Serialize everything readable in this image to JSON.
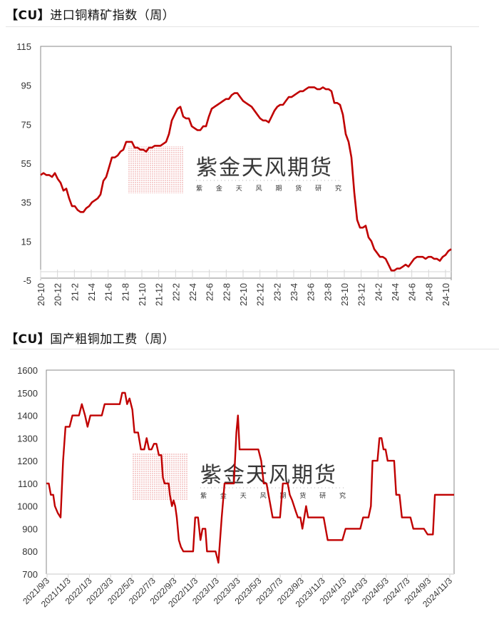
{
  "charts": [
    {
      "title_bracket": "【CU】",
      "title_text": "进口铜精矿指数（周）",
      "watermark": {
        "name": "紫金天风期货",
        "sub": "紫 金 天 风 期 货 研 究"
      }
    },
    {
      "title_bracket": "【CU】",
      "title_text": "国产粗铜加工费（周）",
      "watermark": {
        "name": "紫金天风期货",
        "sub": "紫 金 天 风 期 货 研 究"
      }
    }
  ],
  "colors": {
    "line": "#c00000",
    "axis": "#888888",
    "tick": "#d9d9d9",
    "watermark_red": "#e06060",
    "watermark_gray": "#9a9a9a"
  },
  "chart_data": [
    {
      "type": "line",
      "title": "【CU】进口铜精矿指数（周）",
      "xlabel": "",
      "ylabel": "",
      "ylim": [
        -5,
        115
      ],
      "yticks": [
        -5,
        15,
        35,
        55,
        75,
        95,
        115
      ],
      "xticks": [
        "20-10",
        "20-12",
        "21-2",
        "21-4",
        "21-6",
        "21-8",
        "21-10",
        "21-12",
        "22-2",
        "22-4",
        "22-6",
        "22-8",
        "22-10",
        "22-12",
        "23-2",
        "23-4",
        "23-6",
        "23-8",
        "23-10",
        "23-12",
        "24-2",
        "24-4",
        "24-6",
        "24-8",
        "24-10"
      ],
      "grid": false,
      "legend": null,
      "series": [
        {
          "name": "进口铜精矿指数",
          "x_frac": [
            0,
            0.01,
            0.02,
            0.03,
            0.04,
            0.05,
            0.06,
            0.07,
            0.075,
            0.08,
            0.085,
            0.09,
            0.095,
            0.1,
            0.105,
            0.11,
            0.115,
            0.12,
            0.125,
            0.13,
            0.135,
            0.14,
            0.145,
            0.15,
            0.155,
            0.16,
            0.165,
            0.17,
            0.175,
            0.18,
            0.185,
            0.19,
            0.195,
            0.2,
            0.205,
            0.21,
            0.215,
            0.22,
            0.225,
            0.23,
            0.235,
            0.24,
            0.245,
            0.25,
            0.255,
            0.26,
            0.265,
            0.27,
            0.275,
            0.28,
            0.285,
            0.29,
            0.295,
            0.3,
            0.305,
            0.31,
            0.315,
            0.32,
            0.325,
            0.33,
            0.335,
            0.34,
            0.345,
            0.35,
            0.355,
            0.36,
            0.365,
            0.37,
            0.375,
            0.38,
            0.385,
            0.39,
            0.395,
            0.4,
            0.405,
            0.41,
            0.415,
            0.42,
            0.425,
            0.43,
            0.435,
            0.44,
            0.445,
            0.45,
            0.455,
            0.46,
            0.465,
            0.47,
            0.475,
            0.48,
            0.485,
            0.49,
            0.495,
            0.5,
            0.505,
            0.51,
            0.515,
            0.52,
            0.525,
            0.53,
            0.535,
            0.54,
            0.545,
            0.55,
            0.555,
            0.56,
            0.565,
            0.57,
            0.575,
            0.58,
            0.585,
            0.59,
            0.595,
            0.6,
            0.605,
            0.61,
            0.615,
            0.62,
            0.625,
            0.63,
            0.635,
            0.64,
            0.645,
            0.65,
            0.655,
            0.66,
            0.665,
            0.67,
            0.675,
            0.68,
            0.685,
            0.69,
            0.695,
            0.7,
            0.705,
            0.71,
            0.715,
            0.72,
            0.725,
            0.73,
            0.735,
            0.74,
            0.745,
            0.75,
            0.755,
            0.76,
            0.765,
            0.77,
            0.775,
            0.78,
            0.785,
            0.79,
            0.795,
            0.8,
            0.805,
            0.81,
            0.815,
            0.82,
            0.825,
            0.83,
            0.835,
            0.84,
            0.845,
            0.85,
            0.855,
            0.86,
            0.865,
            0.87,
            0.875,
            0.88,
            0.885,
            0.89,
            0.895,
            0.9,
            0.905,
            0.91,
            0.915,
            0.92,
            0.925,
            0.93,
            0.935,
            0.94,
            0.945,
            0.95,
            0.955,
            0.96,
            0.965,
            0.97,
            0.975,
            0.98,
            0.985,
            0.99,
            0.995,
            1.0
          ],
          "values": [
            49,
            50,
            49,
            49,
            48,
            50,
            47,
            45,
            41,
            42,
            37,
            33,
            33,
            31,
            30,
            30,
            32,
            33,
            35,
            36,
            37,
            39,
            46,
            48,
            53,
            58,
            58,
            59,
            61,
            62,
            66,
            66,
            66,
            63,
            63,
            62,
            62,
            61,
            63,
            63,
            64,
            64,
            64,
            65,
            66,
            70,
            77,
            80,
            83,
            84,
            79,
            78,
            78,
            74,
            73,
            72,
            72,
            74,
            74,
            79,
            83,
            84,
            85,
            86,
            87,
            88,
            88,
            90,
            91,
            91,
            89,
            87,
            86,
            85,
            84,
            82,
            80,
            78,
            77,
            77,
            76,
            79,
            82,
            84,
            85,
            85,
            87,
            89,
            89,
            90,
            91,
            92,
            92,
            93,
            94,
            94,
            94,
            93,
            93,
            94,
            93,
            93,
            92,
            86,
            86,
            85,
            80,
            70,
            66,
            58,
            40,
            26,
            22,
            22,
            23,
            17,
            15,
            11,
            9,
            7,
            7,
            6,
            3,
            0,
            0,
            1,
            1,
            2,
            3,
            2,
            4,
            6,
            7,
            7,
            7,
            6,
            7,
            7,
            6,
            6,
            5,
            7,
            8,
            10,
            11,
            11,
            10,
            10,
            10,
            10,
            10,
            10,
            10,
            10,
            10,
            10,
            10,
            10,
            10,
            10,
            10,
            10,
            10,
            10,
            10,
            10,
            10,
            10,
            10,
            10,
            10,
            10,
            10,
            10,
            10,
            10,
            10,
            10,
            10,
            10,
            10,
            10,
            10,
            10,
            10,
            10,
            10,
            10,
            10,
            10,
            10,
            10,
            10,
            10,
            10,
            10,
            10
          ]
        }
      ]
    },
    {
      "type": "line",
      "title": "【CU】国产粗铜加工费（周）",
      "xlabel": "",
      "ylabel": "",
      "ylim": [
        700,
        1600
      ],
      "yticks": [
        700,
        800,
        900,
        1000,
        1100,
        1200,
        1300,
        1400,
        1500,
        1600
      ],
      "xticks": [
        "2021/9/3",
        "2021/11/3",
        "2022/1/3",
        "2022/3/3",
        "2022/5/3",
        "2022/7/3",
        "2022/9/3",
        "2022/11/3",
        "2023/1/3",
        "2023/3/3",
        "2023/5/3",
        "2023/7/3",
        "2023/9/3",
        "2023/11/3",
        "2024/1/3",
        "2024/3/3",
        "2024/5/3",
        "2024/7/3",
        "2024/9/3",
        "2024/11/3"
      ],
      "grid": false,
      "legend": null,
      "series": [
        {
          "name": "国产粗铜加工费",
          "points": [
            [
              0,
              1100
            ],
            [
              0.006,
              1100
            ],
            [
              0.011,
              1050
            ],
            [
              0.017,
              1050
            ],
            [
              0.021,
              1000
            ],
            [
              0.028,
              970
            ],
            [
              0.035,
              950
            ],
            [
              0.041,
              1200
            ],
            [
              0.047,
              1350
            ],
            [
              0.057,
              1350
            ],
            [
              0.064,
              1400
            ],
            [
              0.08,
              1400
            ],
            [
              0.087,
              1450
            ],
            [
              0.095,
              1400
            ],
            [
              0.101,
              1350
            ],
            [
              0.108,
              1400
            ],
            [
              0.136,
              1400
            ],
            [
              0.143,
              1450
            ],
            [
              0.18,
              1450
            ],
            [
              0.186,
              1500
            ],
            [
              0.193,
              1500
            ],
            [
              0.198,
              1450
            ],
            [
              0.204,
              1475
            ],
            [
              0.211,
              1425
            ],
            [
              0.216,
              1325
            ],
            [
              0.225,
              1325
            ],
            [
              0.232,
              1250
            ],
            [
              0.24,
              1250
            ],
            [
              0.246,
              1300
            ],
            [
              0.252,
              1250
            ],
            [
              0.258,
              1250
            ],
            [
              0.264,
              1275
            ],
            [
              0.27,
              1275
            ],
            [
              0.276,
              1225
            ],
            [
              0.282,
              1225
            ],
            [
              0.286,
              1125
            ],
            [
              0.29,
              1100
            ],
            [
              0.3,
              1100
            ],
            [
              0.303,
              1050
            ],
            [
              0.308,
              1000
            ],
            [
              0.312,
              1025
            ],
            [
              0.316,
              1000
            ],
            [
              0.32,
              950
            ],
            [
              0.325,
              850
            ],
            [
              0.33,
              820
            ],
            [
              0.336,
              800
            ],
            [
              0.36,
              800
            ],
            [
              0.365,
              950
            ],
            [
              0.372,
              950
            ],
            [
              0.378,
              850
            ],
            [
              0.383,
              900
            ],
            [
              0.39,
              900
            ],
            [
              0.394,
              800
            ],
            [
              0.415,
              800
            ],
            [
              0.422,
              750
            ],
            [
              0.43,
              950
            ],
            [
              0.437,
              1100
            ],
            [
              0.46,
              1100
            ],
            [
              0.466,
              1325
            ],
            [
              0.47,
              1400
            ],
            [
              0.474,
              1250
            ],
            [
              0.52,
              1250
            ],
            [
              0.527,
              1200
            ],
            [
              0.533,
              1100
            ],
            [
              0.54,
              1100
            ],
            [
              0.545,
              1050
            ],
            [
              0.555,
              950
            ],
            [
              0.573,
              950
            ],
            [
              0.58,
              1100
            ],
            [
              0.592,
              1100
            ],
            [
              0.597,
              1050
            ],
            [
              0.603,
              1025
            ],
            [
              0.612,
              975
            ],
            [
              0.617,
              950
            ],
            [
              0.623,
              950
            ],
            [
              0.628,
              900
            ],
            [
              0.637,
              1000
            ],
            [
              0.642,
              950
            ],
            [
              0.68,
              950
            ],
            [
              0.69,
              850
            ],
            [
              0.726,
              850
            ],
            [
              0.734,
              900
            ],
            [
              0.77,
              900
            ],
            [
              0.777,
              950
            ],
            [
              0.79,
              950
            ],
            [
              0.796,
              1000
            ],
            [
              0.8,
              1200
            ],
            [
              0.812,
              1200
            ],
            [
              0.817,
              1300
            ],
            [
              0.822,
              1300
            ],
            [
              0.827,
              1250
            ],
            [
              0.832,
              1250
            ],
            [
              0.837,
              1200
            ],
            [
              0.853,
              1200
            ],
            [
              0.858,
              1050
            ],
            [
              0.866,
              1050
            ],
            [
              0.872,
              950
            ],
            [
              0.893,
              950
            ],
            [
              0.9,
              900
            ],
            [
              0.926,
              900
            ],
            [
              0.935,
              875
            ],
            [
              0.948,
              875
            ],
            [
              0.953,
              1050
            ],
            [
              1.0,
              1050
            ]
          ]
        }
      ]
    }
  ]
}
